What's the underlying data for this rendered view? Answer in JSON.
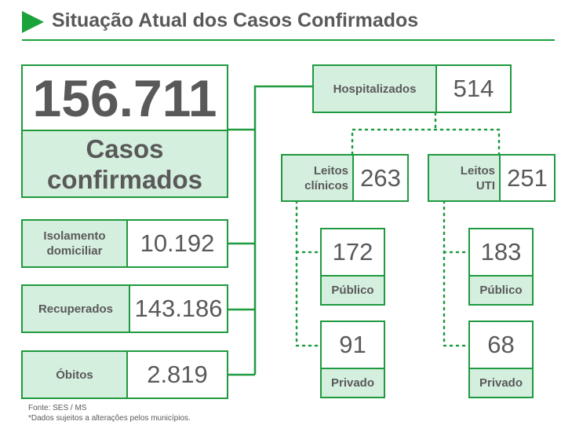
{
  "header": {
    "title": "Situação Atual dos Casos Confirmados"
  },
  "total": {
    "value": "156.711",
    "label": "Casos confirmados"
  },
  "status": [
    {
      "label": "Isolamento domiciliar",
      "value": "10.192"
    },
    {
      "label": "Recuperados",
      "value": "143.186"
    },
    {
      "label": "Óbitos",
      "value": "2.819"
    }
  ],
  "hospitalized": {
    "label": "Hospitalizados",
    "value": "514"
  },
  "beds": [
    {
      "label": "Leitos clínicos",
      "value": "263",
      "split": [
        {
          "value": "172",
          "label": "Público"
        },
        {
          "value": "91",
          "label": "Privado"
        }
      ]
    },
    {
      "label": "Leitos UTI",
      "value": "251",
      "split": [
        {
          "value": "183",
          "label": "Público"
        },
        {
          "value": "68",
          "label": "Privado"
        }
      ]
    }
  ],
  "footer": {
    "source": "Fonte: SES / MS",
    "note": "*Dados sujeitos a alterações pelos municípios."
  }
}
